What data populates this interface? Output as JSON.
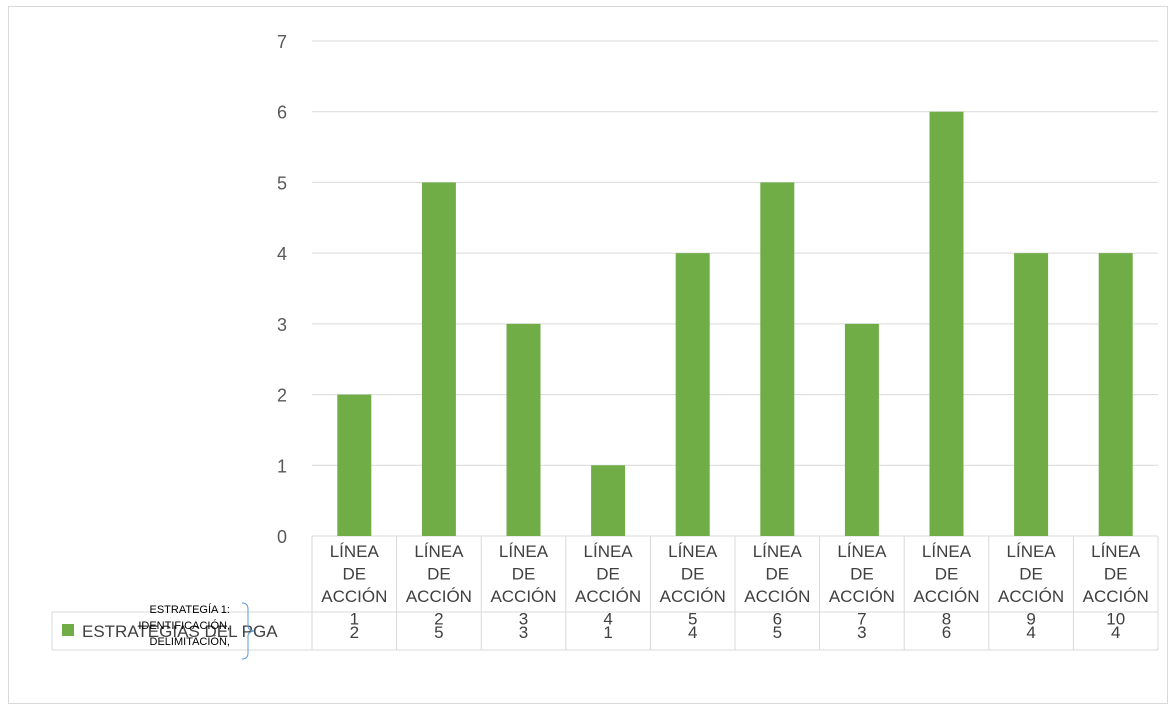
{
  "chart_data": {
    "type": "bar",
    "title": "",
    "xlabel": "",
    "ylabel": "",
    "ylim": [
      0,
      7
    ],
    "yticks": [
      "0",
      "1",
      "2",
      "3",
      "4",
      "5",
      "6",
      "7"
    ],
    "grid": true,
    "legend": "data-table",
    "category_group_label": [
      "ESTRATEGÍA 1:",
      "IDENTIFICACIÓN,",
      "DELIMITACIÓN,"
    ],
    "categories": [
      {
        "lines": [
          "LÍNEA",
          "DE",
          "ACCIÓN",
          "1"
        ]
      },
      {
        "lines": [
          "LÍNEA",
          "DE",
          "ACCIÓN",
          "2"
        ]
      },
      {
        "lines": [
          "LÍNEA",
          "DE",
          "ACCIÓN",
          "3"
        ]
      },
      {
        "lines": [
          "LÍNEA",
          "DE",
          "ACCIÓN",
          "4"
        ]
      },
      {
        "lines": [
          "LÍNEA",
          "DE",
          "ACCIÓN",
          "5"
        ]
      },
      {
        "lines": [
          "LÍNEA",
          "DE",
          "ACCIÓN",
          "6"
        ]
      },
      {
        "lines": [
          "LÍNEA",
          "DE",
          "ACCIÓN",
          "7"
        ]
      },
      {
        "lines": [
          "LÍNEA",
          "DE",
          "ACCIÓN",
          "8"
        ]
      },
      {
        "lines": [
          "LÍNEA",
          "DE",
          "ACCIÓN",
          "9"
        ]
      },
      {
        "lines": [
          "LÍNEA",
          "DE",
          "ACCIÓN",
          "10"
        ]
      }
    ],
    "series": [
      {
        "name": "ESTRATEGIAS DEL PGA",
        "color": "#70ad47",
        "values": [
          2,
          5,
          3,
          1,
          4,
          5,
          3,
          6,
          4,
          4
        ]
      }
    ]
  }
}
